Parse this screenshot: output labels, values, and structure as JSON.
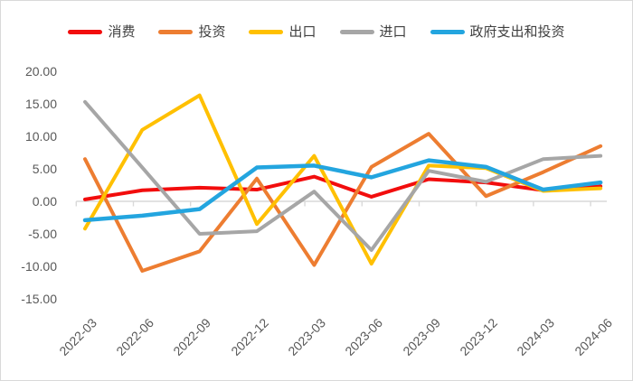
{
  "chart_data": {
    "type": "line",
    "title": "",
    "legend_position": "top",
    "grid": "zero-axis-line-only",
    "categories": [
      "2022-03",
      "2022-06",
      "2022-09",
      "2022-12",
      "2023-03",
      "2023-06",
      "2023-09",
      "2023-12",
      "2024-03",
      "2024-06"
    ],
    "series": [
      {
        "id": "consumption",
        "name": "消费",
        "color": "#f20d0d",
        "values": [
          0.3,
          1.7,
          2.1,
          1.8,
          3.8,
          0.7,
          3.4,
          2.9,
          1.7,
          2.3
        ]
      },
      {
        "id": "investment",
        "name": "投资",
        "color": "#ED7D31",
        "values": [
          6.5,
          -10.7,
          -7.7,
          3.5,
          -9.8,
          5.3,
          10.4,
          0.8,
          4.5,
          8.5
        ]
      },
      {
        "id": "exports",
        "name": "出口",
        "color": "#FFC000",
        "values": [
          -4.2,
          11.0,
          16.3,
          -3.5,
          7.0,
          -9.6,
          5.5,
          5.1,
          1.6,
          2.0
        ]
      },
      {
        "id": "imports",
        "name": "进口",
        "color": "#A6A6A6",
        "values": [
          15.3,
          5.2,
          -5.0,
          -4.6,
          1.5,
          -7.5,
          4.7,
          3.0,
          6.5,
          7.0
        ]
      },
      {
        "id": "gov-spending-investment",
        "name": "政府支出和投资",
        "color": "#23A5DF",
        "values": [
          -2.9,
          -2.2,
          -1.2,
          5.2,
          5.5,
          3.7,
          6.3,
          5.3,
          1.8,
          2.9
        ]
      }
    ],
    "ylim": [
      -15,
      20
    ],
    "ytick_step": 5,
    "y_tick_labels": [
      "20.00",
      "15.00",
      "10.00",
      "5.00",
      "0.00",
      "-5.00",
      "-10.00",
      "-15.00"
    ],
    "axis_color": "#D9D9D9",
    "label_color": "#595959"
  }
}
